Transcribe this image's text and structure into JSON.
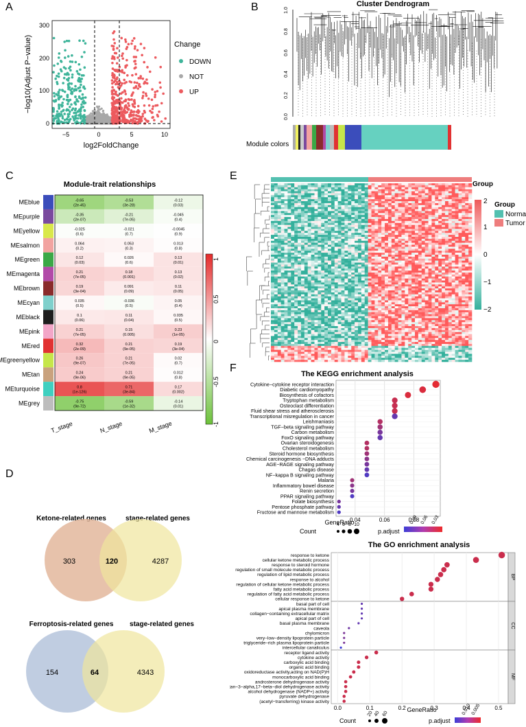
{
  "panels": {
    "A": {
      "label": "A",
      "ylabel": "−log10(Adjust P−value)",
      "xlabel": "log2FoldChange",
      "xticks": [
        "−5",
        "0",
        "5",
        "10"
      ],
      "yticks": [
        "0",
        "100",
        "200",
        "300"
      ],
      "legend_title": "Change",
      "legend": [
        "DOWN",
        "NOT",
        "UP"
      ],
      "colors": {
        "down": "#3eb49a",
        "not": "#a8a8a8",
        "up": "#ec5a5e"
      }
    },
    "B": {
      "label": "B",
      "title": "Cluster Dendrogram",
      "yticks": [
        "0.0",
        "0.2",
        "0.4",
        "0.6",
        "0.8",
        "1.0"
      ],
      "module_label": "Module colors"
    },
    "C": {
      "label": "C",
      "title": "Module-trait relationships",
      "modules": [
        "MEblue",
        "MEpurple",
        "MEyellow",
        "MEsalmon",
        "MEgreen",
        "MEmagenta",
        "MEbrown",
        "MEcyan",
        "MEblack",
        "MEpink",
        "MEred",
        "MEgreenyellow",
        "MEtan",
        "MEturquoise",
        "MEgrey"
      ],
      "module_colors": [
        "#3b4dbb",
        "#7a4a9e",
        "#d9e84a",
        "#f2a3a0",
        "#3aa846",
        "#b24aa8",
        "#8a2b2b",
        "#7fd0cc",
        "#1e1e1e",
        "#f3a6c8",
        "#e13232",
        "#c6e64a",
        "#c9a27d",
        "#3fd0c0",
        "#bdbdbd"
      ],
      "traits": [
        "T_stage",
        "N_stage",
        "M_stage"
      ],
      "cells": [
        [
          [
            "-0.65",
            "(2e-45)"
          ],
          [
            "-0.53",
            "(3e-28)"
          ],
          [
            "-0.12",
            "(0.03)"
          ]
        ],
        [
          [
            "-0.35",
            "(2e-07)"
          ],
          [
            "-0.21",
            "(7e-05)"
          ],
          [
            "-0.045",
            "(0.4)"
          ]
        ],
        [
          [
            "-0.025",
            "(0.6)"
          ],
          [
            "-0.021",
            "(0.7)"
          ],
          [
            "-0.0045",
            "(0.9)"
          ]
        ],
        [
          [
            "0.064",
            "(0.2)"
          ],
          [
            "0.053",
            "(0.3)"
          ],
          [
            "0.013",
            "(0.8)"
          ]
        ],
        [
          [
            "0.12",
            "(0.03)"
          ],
          [
            "0.026",
            "(0.6)"
          ],
          [
            "0.13",
            "(0.01)"
          ]
        ],
        [
          [
            "0.21",
            "(7e-05)"
          ],
          [
            "0.18",
            "(0.001)"
          ],
          [
            "0.13",
            "(0.02)"
          ]
        ],
        [
          [
            "0.19",
            "(3e-04)"
          ],
          [
            "0.091",
            "(0.09)"
          ],
          [
            "0.11",
            "(0.05)"
          ]
        ],
        [
          [
            "0.035",
            "(0.5)"
          ],
          [
            "-0.036",
            "(0.5)"
          ],
          [
            "0.05",
            "(0.4)"
          ]
        ],
        [
          [
            "0.1",
            "(0.06)"
          ],
          [
            "0.11",
            "(0.04)"
          ],
          [
            "0.035",
            "(0.5)"
          ]
        ],
        [
          [
            "0.21",
            "(7e-05)"
          ],
          [
            "0.15",
            "(0.005)"
          ],
          [
            "0.23",
            "(1e-05)"
          ]
        ],
        [
          [
            "0.32",
            "(2e-09)"
          ],
          [
            "0.21",
            "(9e-05)"
          ],
          [
            "0.19",
            "(3e-04)"
          ]
        ],
        [
          [
            "0.26",
            "(9e-07)"
          ],
          [
            "0.21",
            "(7e-05)"
          ],
          [
            "0.02",
            "(0.7)"
          ]
        ],
        [
          [
            "0.24",
            "(9e-06)"
          ],
          [
            "0.21",
            "(9e-05)"
          ],
          [
            "0.012",
            "(0.8)"
          ]
        ],
        [
          [
            "0.8",
            "(1e-126)"
          ],
          [
            "0.71",
            "(3e-84)"
          ],
          [
            "0.17",
            "(0.002)"
          ]
        ],
        [
          [
            "-0.75",
            "(9e-72)"
          ],
          [
            "-0.59",
            "(1e-32)"
          ],
          [
            "-0.14",
            "(0.01)"
          ]
        ]
      ],
      "values": [
        [
          -0.65,
          -0.53,
          -0.12
        ],
        [
          -0.35,
          -0.21,
          -0.045
        ],
        [
          -0.025,
          -0.021,
          -0.0045
        ],
        [
          0.064,
          0.053,
          0.013
        ],
        [
          0.12,
          0.026,
          0.13
        ],
        [
          0.21,
          0.18,
          0.13
        ],
        [
          0.19,
          0.091,
          0.11
        ],
        [
          0.035,
          -0.036,
          0.05
        ],
        [
          0.1,
          0.11,
          0.035
        ],
        [
          0.21,
          0.15,
          0.23
        ],
        [
          0.32,
          0.21,
          0.19
        ],
        [
          0.26,
          0.21,
          0.02
        ],
        [
          0.24,
          0.21,
          0.012
        ],
        [
          0.8,
          0.71,
          0.17
        ],
        [
          -0.75,
          -0.59,
          -0.14
        ]
      ],
      "scale_ticks": [
        "1",
        "0.5",
        "0",
        "-0.5",
        "-1"
      ]
    },
    "D": {
      "label": "D",
      "venn1": {
        "left_title": "Ketone-related genes",
        "right_title": "stage-related genes",
        "left": "303",
        "both": "120",
        "right": "4287"
      },
      "venn2": {
        "left_title": "Ferroptosis-related genes",
        "right_title": "stage-related genes",
        "left": "154",
        "both": "64",
        "right": "4343"
      }
    },
    "E": {
      "label": "E",
      "group_title": "Group",
      "legend_title": "Group",
      "legend": [
        "Normal",
        "Tumor"
      ],
      "scale_ticks": [
        "2",
        "1",
        "0",
        "−1",
        "−2"
      ]
    },
    "F": {
      "label": "F",
      "kegg_title": "The KEGG enrichment analysis",
      "go_title": "The GO enrichment analysis",
      "xlabel": "GeneRatio",
      "count_label": "Count",
      "padj_label": "p.adjust",
      "kegg_size_ticks": [
        "4",
        "6",
        "8",
        "10"
      ],
      "kegg_color_ticks": [
        "0.09",
        "0.06",
        "0.03"
      ],
      "go_size_ticks": [
        "20",
        "40",
        "60"
      ],
      "go_color_ticks": [
        "0.010",
        "0.005"
      ],
      "go_sections": [
        "BP",
        "CC",
        "MF"
      ]
    }
  },
  "chart_data": [
    {
      "type": "scatter",
      "title": "The KEGG enrichment analysis",
      "xlabel": "GeneRatio",
      "xticks": [
        "0.04",
        "0.06",
        "0.08"
      ],
      "terms": [
        "Cytokine−cytokine receptor interaction",
        "Diabetic cardiomyopathy",
        "Biosynthesis of cofactors",
        "Tryptophan metabolism",
        "Osteoclast differentiation",
        "Fluid shear stress and atherosclerosis",
        "Transcriptional misregulation in cancer",
        "Leishmaniasis",
        "TGF−beta signaling pathway",
        "Carbon metabolism",
        "FoxO signaling pathway",
        "Ovarian steroidogenesis",
        "Cholesterol metabolism",
        "Steroid hormone biosynthesis",
        "Chemical carcinogenesis −DNA adducts",
        "AGE−RAGE signaling pathway",
        "Chagas disease",
        "NF−kappa B signaling pathway",
        "Malaria",
        "Inflammatory bowel disease",
        "Renin secretion",
        "PPAR signaling pathway",
        "Folate biosynthesis",
        "Pentose phosphate pathway",
        "Fructose and mannose metabolism"
      ],
      "gene_ratio": [
        0.095,
        0.086,
        0.076,
        0.067,
        0.067,
        0.067,
        0.067,
        0.057,
        0.057,
        0.057,
        0.057,
        0.048,
        0.048,
        0.048,
        0.048,
        0.048,
        0.048,
        0.048,
        0.038,
        0.038,
        0.038,
        0.038,
        0.029,
        0.029,
        0.029
      ],
      "count": [
        10,
        9,
        8,
        7,
        7,
        7,
        7,
        6,
        6,
        6,
        6,
        5,
        5,
        5,
        5,
        5,
        5,
        5,
        4,
        4,
        4,
        4,
        3,
        3,
        3
      ],
      "p_adjust": [
        0.005,
        0.01,
        0.01,
        0.02,
        0.02,
        0.02,
        0.07,
        0.03,
        0.04,
        0.06,
        0.07,
        0.03,
        0.03,
        0.04,
        0.05,
        0.06,
        0.07,
        0.08,
        0.04,
        0.05,
        0.06,
        0.08,
        0.06,
        0.07,
        0.08
      ],
      "xlim": [
        0.027,
        0.098
      ]
    },
    {
      "type": "scatter",
      "title": "The GO enrichment analysis",
      "xlabel": "GeneRatio",
      "xticks": [
        "0.0",
        "0.1",
        "0.2",
        "0.3",
        "0.4",
        "0.5"
      ],
      "sections": [
        {
          "name": "BP",
          "terms": [
            "response to ketone",
            "cellular ketone metabolic process",
            "response to steroid hormone",
            "regulation of small molecule metabolic process",
            "regulation of lipid metabolic process",
            "response to alcohol",
            "regulation of cellular ketone metabolic process",
            "fatty acid metabolic process",
            "regulation of fatty acid metabolic process",
            "cellular response to ketone"
          ],
          "gene_ratio": [
            0.51,
            0.43,
            0.34,
            0.33,
            0.32,
            0.31,
            0.29,
            0.29,
            0.23,
            0.2
          ],
          "p_adjust": [
            0.001,
            0.001,
            0.001,
            0.001,
            0.001,
            0.001,
            0.001,
            0.001,
            0.001,
            0.001
          ]
        },
        {
          "name": "CC",
          "terms": [
            "basal part of cell",
            "apical plasma membrane",
            "collagen−containing extracellular matrix",
            "apical part of cell",
            "basal plasma membrane",
            "caveola",
            "chylomicron",
            "very−low−density lipoprotein particle",
            "triglyceride−rich plasma lipoprotein particle",
            "intercellular canaliculus"
          ],
          "gene_ratio": [
            0.075,
            0.075,
            0.075,
            0.075,
            0.065,
            0.035,
            0.02,
            0.02,
            0.02,
            0.01
          ],
          "p_adjust": [
            0.011,
            0.011,
            0.011,
            0.011,
            0.011,
            0.01,
            0.009,
            0.009,
            0.009,
            0.014
          ]
        },
        {
          "name": "MF",
          "terms": [
            "receptor ligand activity",
            "cytokine activity",
            "carboxylic acid binding",
            "organic acid binding",
            "oxidoreductase activity,acting on NAD(P)H",
            "monocarboxylic acid binding",
            "androsterone dehydrogenase activity",
            "androstan−3−alpha,17−beta−diol dehydrogenase activity",
            "alcohol dehydrogenase (NADP+) activity",
            "pyruvate dehydrogenase",
            "(acetyl−transferring) kinase activity"
          ],
          "gene_ratio": [
            0.12,
            0.09,
            0.065,
            0.065,
            0.05,
            0.04,
            0.025,
            0.025,
            0.025,
            0.02,
            0.02
          ],
          "p_adjust": [
            0.001,
            0.001,
            0.001,
            0.001,
            0.001,
            0.001,
            0.001,
            0.001,
            0.001,
            0.001,
            0.001
          ]
        }
      ],
      "xlim": [
        -0.02,
        0.53
      ]
    }
  ]
}
